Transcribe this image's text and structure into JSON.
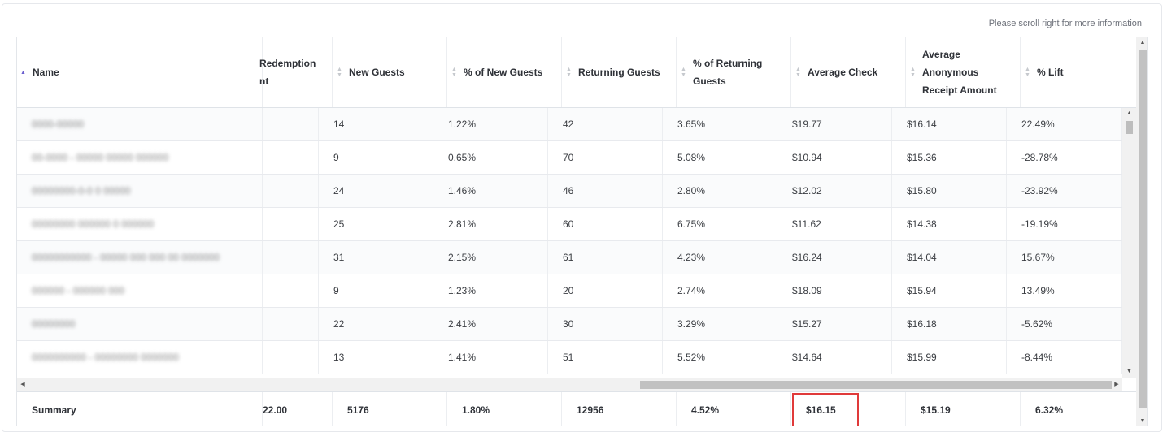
{
  "scroll_hint": "Please scroll right for more information",
  "header": {
    "name": "Name",
    "redemption_line1": "Redemption",
    "redemption_line2": "nt",
    "new_guests": "New Guests",
    "pct_new_guests": "% of New Guests",
    "returning_guests": "Returning Guests",
    "pct_returning_line1": "% of Returning",
    "pct_returning_line2": "Guests",
    "average_check": "Average Check",
    "avg_anon_line1": "Average",
    "avg_anon_line2": "Anonymous",
    "avg_anon_line3": "Receipt Amount",
    "pct_lift": "% Lift"
  },
  "rows": [
    {
      "name": "0000-00000",
      "new_guests": "14",
      "pct_new": "1.22%",
      "returning": "42",
      "pct_returning": "3.65%",
      "avg_check": "$19.77",
      "avg_anon": "$16.14",
      "lift": "22.49%"
    },
    {
      "name": "00-0000 - 00000 00000 000000",
      "new_guests": "9",
      "pct_new": "0.65%",
      "returning": "70",
      "pct_returning": "5.08%",
      "avg_check": "$10.94",
      "avg_anon": "$15.36",
      "lift": "-28.78%"
    },
    {
      "name": "00000000-0-0 0 00000",
      "new_guests": "24",
      "pct_new": "1.46%",
      "returning": "46",
      "pct_returning": "2.80%",
      "avg_check": "$12.02",
      "avg_anon": "$15.80",
      "lift": "-23.92%"
    },
    {
      "name": "00000000 000000 0 000000",
      "new_guests": "25",
      "pct_new": "2.81%",
      "returning": "60",
      "pct_returning": "6.75%",
      "avg_check": "$11.62",
      "avg_anon": "$14.38",
      "lift": "-19.19%"
    },
    {
      "name": "00000000000 - 00000 000 000 00 0000000",
      "new_guests": "31",
      "pct_new": "2.15%",
      "returning": "61",
      "pct_returning": "4.23%",
      "avg_check": "$16.24",
      "avg_anon": "$14.04",
      "lift": "15.67%"
    },
    {
      "name": "000000 - 000000 000",
      "new_guests": "9",
      "pct_new": "1.23%",
      "returning": "20",
      "pct_returning": "2.74%",
      "avg_check": "$18.09",
      "avg_anon": "$15.94",
      "lift": "13.49%"
    },
    {
      "name": "00000000",
      "new_guests": "22",
      "pct_new": "2.41%",
      "returning": "30",
      "pct_returning": "3.29%",
      "avg_check": "$15.27",
      "avg_anon": "$16.18",
      "lift": "-5.62%"
    },
    {
      "name": "0000000000 - 00000000 0000000",
      "new_guests": "13",
      "pct_new": "1.41%",
      "returning": "51",
      "pct_returning": "5.52%",
      "avg_check": "$14.64",
      "avg_anon": "$15.99",
      "lift": "-8.44%"
    }
  ],
  "summary": {
    "label": "Summary",
    "redemption": "22.00",
    "new_guests": "5176",
    "pct_new": "1.80%",
    "returning": "12956",
    "pct_returning": "4.52%",
    "avg_check": "$16.15",
    "avg_anon": "$15.19",
    "lift": "6.32%"
  },
  "icons": {
    "sort": "sort-icon",
    "scroll_up": "triangle-up-icon",
    "scroll_down": "triangle-down-icon",
    "scroll_left": "triangle-left-icon",
    "scroll_right": "triangle-right-icon"
  },
  "colors": {
    "sort_active": "#6b5fcf",
    "highlight": "#e03a3a"
  }
}
